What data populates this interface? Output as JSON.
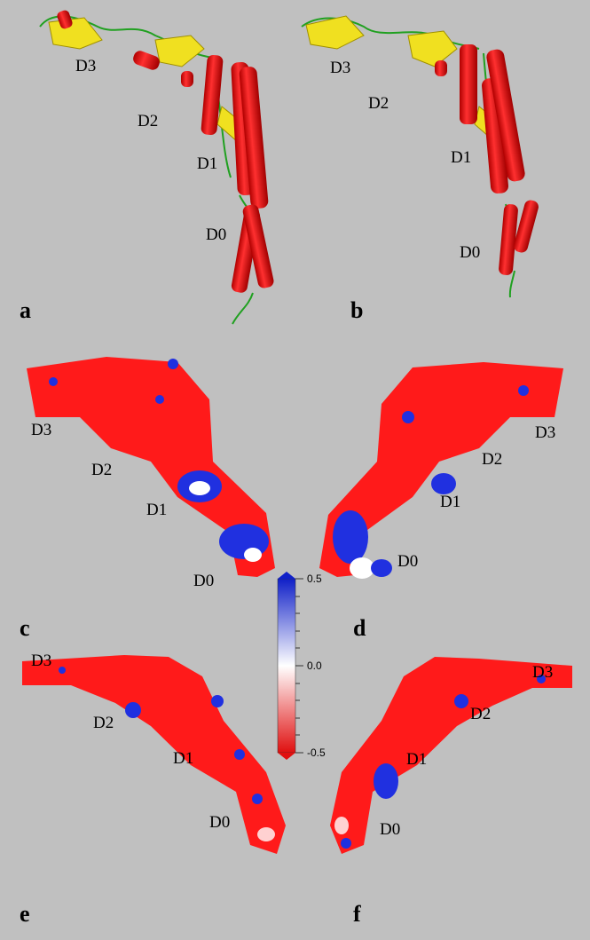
{
  "panels": [
    {
      "label": "a",
      "domains": [
        "D3",
        "D2",
        "D1",
        "D0"
      ]
    },
    {
      "label": "b",
      "domains": [
        "D3",
        "D2",
        "D1",
        "D0"
      ]
    },
    {
      "label": "c",
      "domains": [
        "D3",
        "D2",
        "D1",
        "D0"
      ]
    },
    {
      "label": "d",
      "domains": [
        "D3",
        "D2",
        "D1",
        "D0"
      ]
    },
    {
      "label": "e",
      "domains": [
        "D3",
        "D2",
        "D1",
        "D0"
      ]
    },
    {
      "label": "f",
      "domains": [
        "D3",
        "D2",
        "D1",
        "D0"
      ]
    }
  ],
  "colorbar": {
    "lim": [
      -0.5,
      0.5
    ],
    "ticks": [
      -0.5,
      {
        "value": 0,
        "label": "0.0"
      },
      0.5
    ]
  }
}
